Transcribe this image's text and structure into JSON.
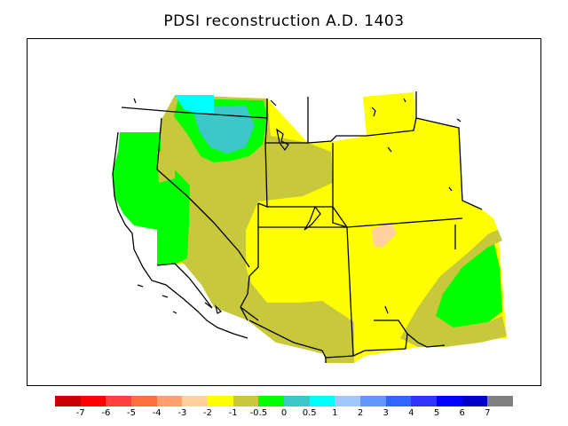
{
  "title": "PDSI reconstruction A.D. 1403",
  "legend": {
    "colors": [
      "#c80000",
      "#ff0000",
      "#ff4040",
      "#ff7040",
      "#ffa070",
      "#ffd0a0",
      "#ffff00",
      "#c8c83c",
      "#00ff00",
      "#3cc8c8",
      "#00ffff",
      "#a0c8ff",
      "#6496ff",
      "#3264ff",
      "#3232ff",
      "#0000ff",
      "#0000c8",
      "#808080"
    ],
    "tick_labels": [
      "-7",
      "-6",
      "-5",
      "-4",
      "-3",
      "-2",
      "-1",
      "-0.5",
      "0",
      "0.5",
      "1",
      "2",
      "3",
      "4",
      "5",
      "6",
      "7"
    ]
  },
  "map_colors": {
    "yellow": "#ffff00",
    "olive": "#c8c83c",
    "green": "#00ff00",
    "teal": "#3cc8c8",
    "cyan": "#00ffff",
    "peach": "#ffd0a0",
    "outline": "#000000"
  }
}
